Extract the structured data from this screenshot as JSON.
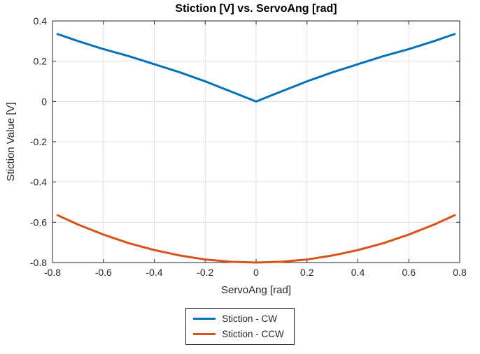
{
  "chart_data": {
    "type": "line",
    "title": "Stiction [V] vs. ServoAng [rad]",
    "xlabel": "ServoAng [rad]",
    "ylabel": "Stiction Value [V]",
    "xlim": [
      -0.8,
      0.8
    ],
    "ylim": [
      -0.8,
      0.4
    ],
    "xticks": [
      -0.8,
      -0.6,
      -0.4,
      -0.2,
      0,
      0.2,
      0.4,
      0.6,
      0.8
    ],
    "yticks": [
      -0.8,
      -0.6,
      -0.4,
      -0.2,
      0,
      0.2,
      0.4
    ],
    "grid": true,
    "legend_position": "below-center",
    "x": [
      -0.78,
      -0.7,
      -0.6,
      -0.5,
      -0.4,
      -0.3,
      -0.2,
      -0.1,
      0,
      0.1,
      0.2,
      0.3,
      0.4,
      0.5,
      0.6,
      0.7,
      0.78
    ],
    "series": [
      {
        "name": "Stiction - CW",
        "color": "#0072BD",
        "values": [
          0.335,
          0.3,
          0.26,
          0.225,
          0.185,
          0.145,
          0.1,
          0.05,
          0,
          0.05,
          0.1,
          0.145,
          0.185,
          0.225,
          0.26,
          0.3,
          0.335
        ]
      },
      {
        "name": "Stiction - CCW",
        "color": "#D95319",
        "values": [
          -0.565,
          -0.611,
          -0.661,
          -0.704,
          -0.738,
          -0.765,
          -0.785,
          -0.796,
          -0.8,
          -0.796,
          -0.785,
          -0.765,
          -0.738,
          -0.704,
          -0.661,
          -0.611,
          -0.565
        ]
      }
    ],
    "style": {
      "line_width": 3,
      "grid_color": "#e0e0e0",
      "axes_color": "#262626"
    }
  }
}
